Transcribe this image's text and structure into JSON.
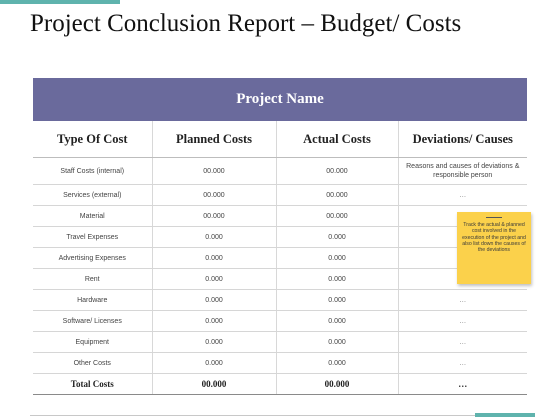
{
  "slide": {
    "title": "Project Conclusion Report – Budget/ Costs"
  },
  "table": {
    "banner": "Project Name",
    "headers": [
      "Type Of Cost",
      "Planned Costs",
      "Actual Costs",
      "Deviations/ Causes"
    ],
    "rows": [
      [
        "Staff Costs (internal)",
        "00.000",
        "00.000",
        "Reasons and causes of deviations & responsible person"
      ],
      [
        "Services (external)",
        "00.000",
        "00.000",
        "…"
      ],
      [
        "Material",
        "00.000",
        "00.000",
        ""
      ],
      [
        "Travel  Expenses",
        "0.000",
        "0.000",
        ""
      ],
      [
        "Advertising  Expenses",
        "0.000",
        "0.000",
        ""
      ],
      [
        "Rent",
        "0.000",
        "0.000",
        ""
      ],
      [
        "Hardware",
        "0.000",
        "0.000",
        "…"
      ],
      [
        "Software/  Licenses",
        "0.000",
        "0.000",
        "…"
      ],
      [
        "Equipment",
        "0.000",
        "0.000",
        "…"
      ],
      [
        "Other Costs",
        "0.000",
        "0.000",
        "…"
      ],
      [
        "Total Costs",
        "00.000",
        "00.000",
        "…"
      ]
    ]
  },
  "sticky_note": {
    "text": "Track the actual & planned cost involved in the execution of the project and also list down the causes of the deviations",
    "color": "#fbd14b"
  },
  "colors": {
    "banner": "#6a6a9c",
    "accent": "#5fb3ad"
  }
}
